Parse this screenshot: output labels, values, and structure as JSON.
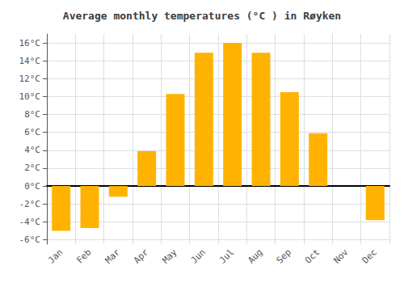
{
  "chart_data": {
    "type": "bar",
    "title": "Average monthly temperatures (°C ) in Røyken",
    "categories": [
      "Jan",
      "Feb",
      "Mar",
      "Apr",
      "May",
      "Jun",
      "Jul",
      "Aug",
      "Sep",
      "Oct",
      "Nov",
      "Dec"
    ],
    "values": [
      -5.0,
      -4.7,
      -1.2,
      3.9,
      10.3,
      14.9,
      16.0,
      14.9,
      10.5,
      5.9,
      0.0,
      -3.8
    ],
    "color": "#FFB300",
    "ylim": [
      -6.5,
      17.0
    ],
    "yticks": [
      {
        "value": -6,
        "label": "-6°C"
      },
      {
        "value": -4,
        "label": "-4°C"
      },
      {
        "value": -2,
        "label": "-2°C"
      },
      {
        "value": 0,
        "label": "0°C"
      },
      {
        "value": 2,
        "label": "2°C"
      },
      {
        "value": 4,
        "label": "4°C"
      },
      {
        "value": 6,
        "label": "6°C"
      },
      {
        "value": 8,
        "label": "8°C"
      },
      {
        "value": 10,
        "label": "10°C"
      },
      {
        "value": 12,
        "label": "12°C"
      },
      {
        "value": 14,
        "label": "14°C"
      },
      {
        "value": 16,
        "label": "16°C"
      }
    ],
    "grid": true
  }
}
